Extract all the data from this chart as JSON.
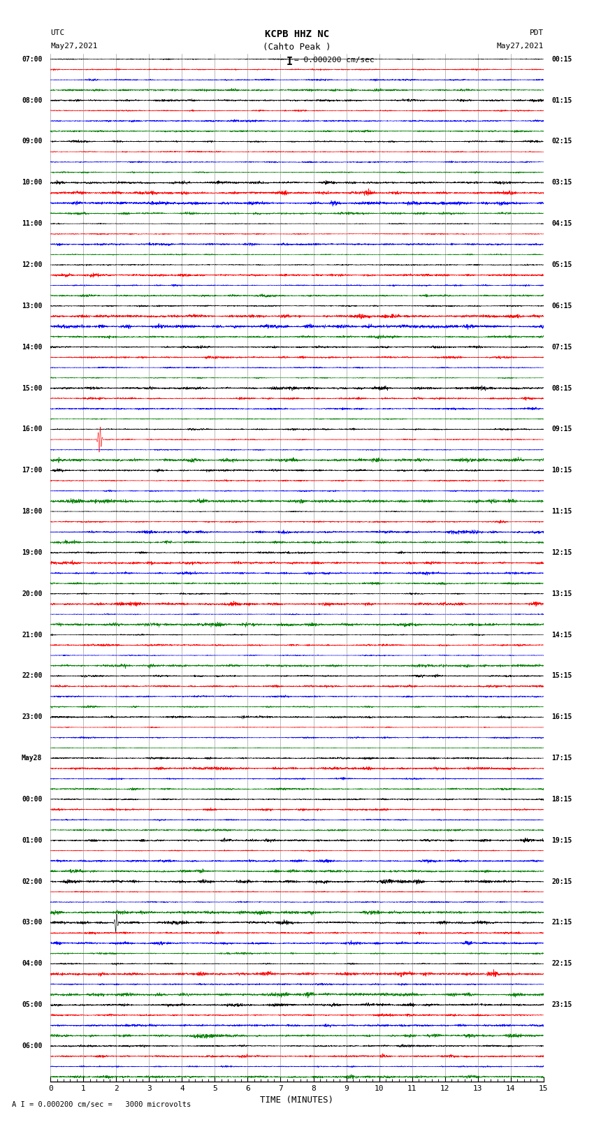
{
  "title_line1": "KCPB HHZ NC",
  "title_line2": "(Cahto Peak )",
  "scale_label": "= 0.000200 cm/sec",
  "scale_bracket": "I",
  "bottom_label": "A I = 0.000200 cm/sec =   3000 microvolts",
  "utc_label": "UTC",
  "pdt_label": "PDT",
  "date_left": "May27,2021",
  "date_right": "May27,2021",
  "xlabel": "TIME (MINUTES)",
  "fig_width": 8.5,
  "fig_height": 16.13,
  "dpi": 100,
  "bg_color": "#ffffff",
  "trace_colors": [
    "black",
    "red",
    "blue",
    "green"
  ],
  "left_times": [
    "07:00",
    "",
    "",
    "",
    "08:00",
    "",
    "",
    "",
    "09:00",
    "",
    "",
    "",
    "10:00",
    "",
    "",
    "",
    "11:00",
    "",
    "",
    "",
    "12:00",
    "",
    "",
    "",
    "13:00",
    "",
    "",
    "",
    "14:00",
    "",
    "",
    "",
    "15:00",
    "",
    "",
    "",
    "16:00",
    "",
    "",
    "",
    "17:00",
    "",
    "",
    "",
    "18:00",
    "",
    "",
    "",
    "19:00",
    "",
    "",
    "",
    "20:00",
    "",
    "",
    "",
    "21:00",
    "",
    "",
    "",
    "22:00",
    "",
    "",
    "",
    "23:00",
    "",
    "",
    "",
    "May28",
    "",
    "",
    "",
    "00:00",
    "",
    "",
    "",
    "01:00",
    "",
    "",
    "",
    "02:00",
    "",
    "",
    "",
    "03:00",
    "",
    "",
    "",
    "04:00",
    "",
    "",
    "",
    "05:00",
    "",
    "",
    "",
    "06:00",
    "",
    "",
    ""
  ],
  "right_times": [
    "00:15",
    "",
    "",
    "",
    "01:15",
    "",
    "",
    "",
    "02:15",
    "",
    "",
    "",
    "03:15",
    "",
    "",
    "",
    "04:15",
    "",
    "",
    "",
    "05:15",
    "",
    "",
    "",
    "06:15",
    "",
    "",
    "",
    "07:15",
    "",
    "",
    "",
    "08:15",
    "",
    "",
    "",
    "09:15",
    "",
    "",
    "",
    "10:15",
    "",
    "",
    "",
    "11:15",
    "",
    "",
    "",
    "12:15",
    "",
    "",
    "",
    "13:15",
    "",
    "",
    "",
    "14:15",
    "",
    "",
    "",
    "15:15",
    "",
    "",
    "",
    "16:15",
    "",
    "",
    "",
    "17:15",
    "",
    "",
    "",
    "18:15",
    "",
    "",
    "",
    "19:15",
    "",
    "",
    "",
    "20:15",
    "",
    "",
    "",
    "21:15",
    "",
    "",
    "",
    "22:15",
    "",
    "",
    "",
    "23:15",
    "",
    "",
    "",
    "",
    "",
    "",
    ""
  ],
  "noise_scale": 0.3,
  "x_ticks": [
    0,
    1,
    2,
    3,
    4,
    5,
    6,
    7,
    8,
    9,
    10,
    11,
    12,
    13,
    14,
    15
  ],
  "x_lim": [
    0,
    15
  ],
  "grid_color": "#888888",
  "grid_lw": 0.4
}
